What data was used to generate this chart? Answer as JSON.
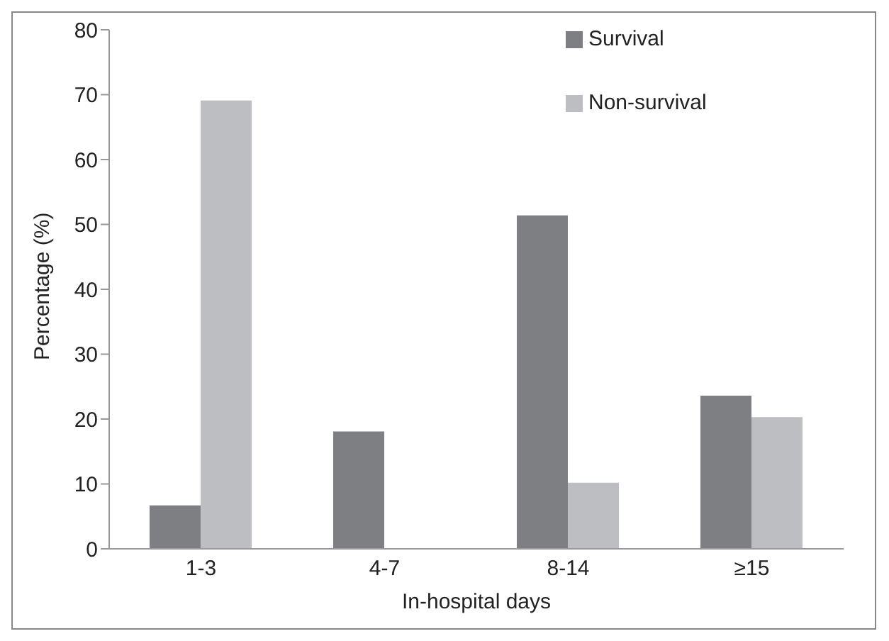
{
  "chart_data": {
    "type": "bar",
    "xlabel": "In-hospital days",
    "ylabel": "Percentage (%)",
    "categories": [
      "1-3",
      "4-7",
      "8-14",
      "≥15"
    ],
    "series": [
      {
        "name": "Survival",
        "color": "#7e7f83",
        "values": [
          6.7,
          18.1,
          51.4,
          23.6
        ]
      },
      {
        "name": "Non-survival",
        "color": "#bdbec2",
        "values": [
          69.1,
          0,
          10.2,
          20.3
        ]
      }
    ],
    "ylim": [
      0,
      80
    ],
    "yticks": [
      0,
      10,
      20,
      30,
      40,
      50,
      60,
      70,
      80
    ],
    "grid": false,
    "legend": "top right"
  }
}
